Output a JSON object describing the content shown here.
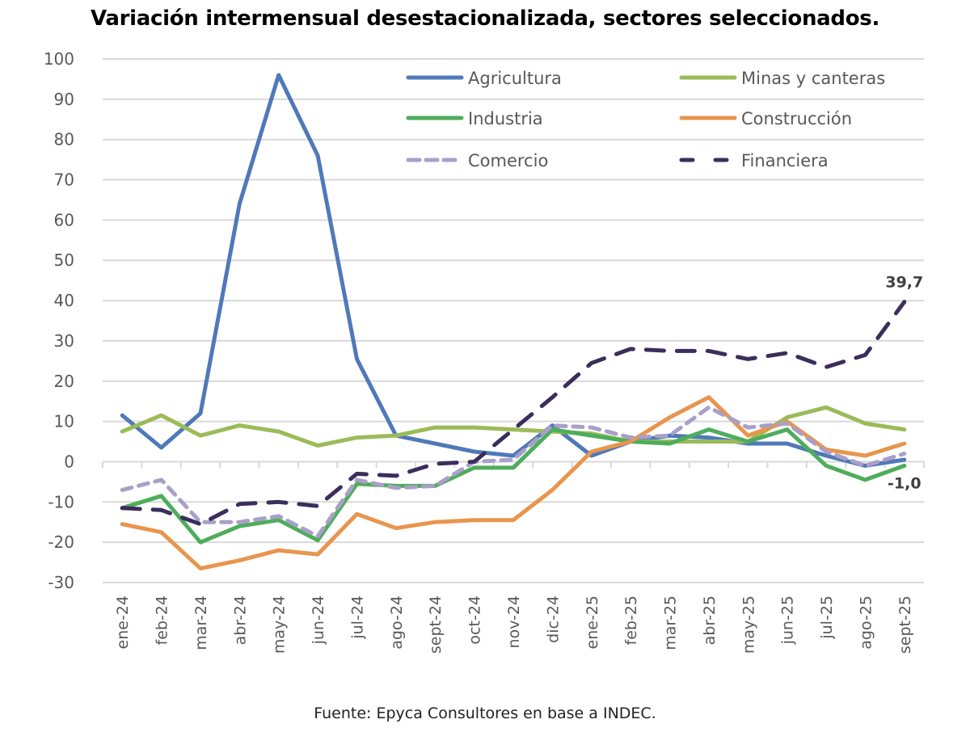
{
  "chart_data": {
    "type": "line",
    "title": "Variación intermensual desestacionalizada, sectores seleccionados.",
    "source": "Fuente: Epyca Consultores en base a INDEC.",
    "xlabel": "",
    "ylabel": "",
    "ylim": [
      -30,
      100
    ],
    "yticks": [
      100,
      90,
      80,
      70,
      60,
      50,
      40,
      30,
      20,
      10,
      0,
      -10,
      -20,
      -30
    ],
    "grid": true,
    "legend_position": "top-right",
    "categories": [
      "ene-24",
      "feb-24",
      "mar-24",
      "abr-24",
      "may-24",
      "jun-24",
      "jul-24",
      "ago-24",
      "sept-24",
      "oct-24",
      "nov-24",
      "dic-24",
      "ene-25",
      "feb-25",
      "mar-25",
      "abr-25",
      "may-25",
      "jun-25",
      "jul-25",
      "ago-25",
      "sept-25"
    ],
    "series": [
      {
        "name": "Agricultura",
        "color": "#4f79b9",
        "dash": "solid",
        "values": [
          11.5,
          3.5,
          12,
          64,
          96,
          76,
          25.5,
          6.5,
          4.5,
          2.5,
          1.5,
          9,
          1.5,
          5,
          6.5,
          6,
          4.5,
          4.5,
          1.5,
          -1,
          0.5
        ]
      },
      {
        "name": "Minas y canteras",
        "color": "#9bbb59",
        "dash": "solid",
        "values": [
          7.5,
          11.5,
          6.5,
          9,
          7.5,
          4,
          6,
          6.5,
          8.5,
          8.5,
          8,
          7.5,
          7,
          5,
          5,
          5,
          5,
          11,
          13.5,
          9.5,
          8
        ]
      },
      {
        "name": "Industria",
        "color": "#4ead5b",
        "dash": "solid",
        "values": [
          -11.5,
          -8.5,
          -20,
          -16,
          -14.5,
          -19.5,
          -5.5,
          -6,
          -6,
          -1.5,
          -1.5,
          8,
          6.5,
          5,
          4.5,
          8,
          5,
          8,
          -1,
          -4.5,
          -1.0
        ]
      },
      {
        "name": "Construcción",
        "color": "#e8954d",
        "dash": "solid",
        "values": [
          -15.5,
          -17.5,
          -26.5,
          -24.5,
          -22,
          -23,
          -13,
          -16.5,
          -15,
          -14.5,
          -14.5,
          -7,
          2.5,
          5,
          11,
          16,
          6.5,
          10,
          3,
          1.5,
          4.5
        ]
      },
      {
        "name": "Comercio",
        "color": "#a99fc9",
        "dash": "dashed",
        "values": [
          -7,
          -4.5,
          -15,
          -15,
          -13.5,
          -18.5,
          -4.5,
          -6.5,
          -6,
          0,
          0.5,
          9,
          8.5,
          6,
          6.5,
          13.5,
          8.5,
          9.5,
          2.5,
          -1,
          2
        ]
      },
      {
        "name": "Financiera",
        "color": "#3b2d5c",
        "dash": "long-dash",
        "values": [
          -11.5,
          -12,
          -15.5,
          -10.5,
          -10,
          -11,
          -3,
          -3.5,
          -0.5,
          0,
          8,
          16,
          24.5,
          28,
          27.5,
          27.5,
          25.5,
          27,
          23.5,
          26.5,
          39.7
        ]
      }
    ],
    "annotations": [
      {
        "text": "39,7",
        "series": "Financiera",
        "category": "sept-25",
        "value": 39.7
      },
      {
        "text": "-1,0",
        "series": "Industria",
        "category": "sept-25",
        "value": -1.0
      }
    ],
    "legend": [
      {
        "label": "Agricultura"
      },
      {
        "label": "Minas y canteras"
      },
      {
        "label": "Industria"
      },
      {
        "label": "Construcción"
      },
      {
        "label": "Comercio"
      },
      {
        "label": "Financiera"
      }
    ]
  }
}
